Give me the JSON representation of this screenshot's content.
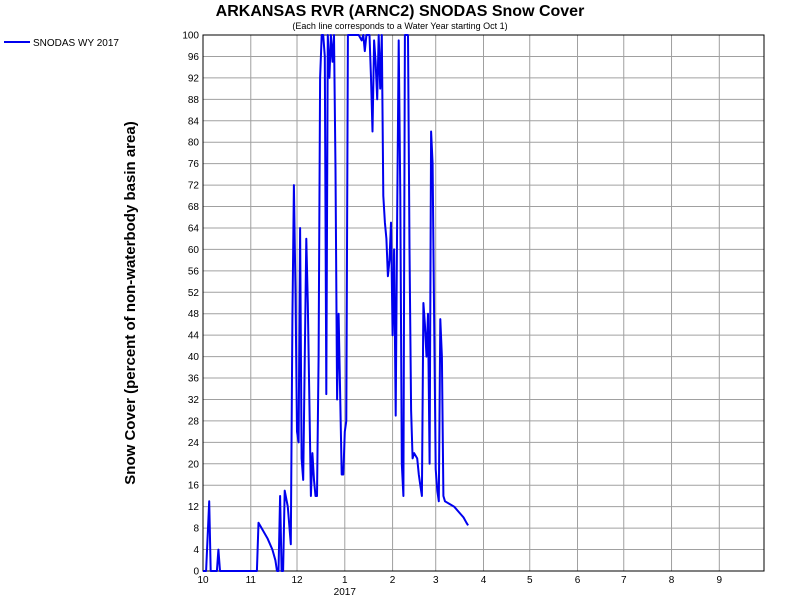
{
  "chart_data": {
    "type": "line",
    "title": "ARKANSAS RVR (ARNC2) SNODAS Snow Cover",
    "subtitle": "(Each line corresponds to a Water Year starting Oct 1)",
    "ylabel": "Snow Cover (percent of non-waterbody basin area)",
    "xlabel": "",
    "ylim": [
      0,
      100
    ],
    "y_ticks": [
      0,
      4,
      8,
      12,
      16,
      20,
      24,
      28,
      32,
      36,
      40,
      44,
      48,
      52,
      56,
      60,
      64,
      68,
      72,
      76,
      80,
      84,
      88,
      92,
      96,
      100
    ],
    "x_ticks": [
      {
        "label": "10",
        "date": "2016-10-01"
      },
      {
        "label": "11",
        "date": "2016-11-01"
      },
      {
        "label": "12",
        "date": "2016-12-01"
      },
      {
        "label": "1",
        "date": "2017-01-01"
      },
      {
        "label": "2",
        "date": "2017-02-01"
      },
      {
        "label": "3",
        "date": "2017-03-01"
      },
      {
        "label": "4",
        "date": "2017-04-01"
      },
      {
        "label": "5",
        "date": "2017-05-01"
      },
      {
        "label": "6",
        "date": "2017-06-01"
      },
      {
        "label": "7",
        "date": "2017-07-01"
      },
      {
        "label": "8",
        "date": "2017-08-01"
      },
      {
        "label": "9",
        "date": "2017-09-01"
      }
    ],
    "year_label": {
      "text": "2017",
      "date": "2017-01-01"
    },
    "xlim": [
      "2016-10-01",
      "2017-09-30"
    ],
    "grid": true,
    "legend": "top-left",
    "series": [
      {
        "name": "SNODAS WY 2017",
        "color": "#0000ee",
        "points": [
          [
            "2016-10-01",
            0
          ],
          [
            "2016-10-03",
            0
          ],
          [
            "2016-10-05",
            13
          ],
          [
            "2016-10-06",
            0
          ],
          [
            "2016-10-10",
            0
          ],
          [
            "2016-10-11",
            4
          ],
          [
            "2016-10-12",
            0
          ],
          [
            "2016-10-20",
            0
          ],
          [
            "2016-11-01",
            0
          ],
          [
            "2016-11-05",
            0
          ],
          [
            "2016-11-06",
            9
          ],
          [
            "2016-11-08",
            8
          ],
          [
            "2016-11-12",
            6
          ],
          [
            "2016-11-15",
            4
          ],
          [
            "2016-11-17",
            2
          ],
          [
            "2016-11-18",
            0
          ],
          [
            "2016-11-19",
            0
          ],
          [
            "2016-11-20",
            14
          ],
          [
            "2016-11-21",
            0
          ],
          [
            "2016-11-22",
            0
          ],
          [
            "2016-11-23",
            15
          ],
          [
            "2016-11-25",
            12
          ],
          [
            "2016-11-27",
            5
          ],
          [
            "2016-11-28",
            47
          ],
          [
            "2016-11-29",
            72
          ],
          [
            "2016-11-30",
            52
          ],
          [
            "2016-12-01",
            26
          ],
          [
            "2016-12-02",
            24
          ],
          [
            "2016-12-03",
            64
          ],
          [
            "2016-12-04",
            21
          ],
          [
            "2016-12-05",
            17
          ],
          [
            "2016-12-07",
            62
          ],
          [
            "2016-12-08",
            50
          ],
          [
            "2016-12-10",
            14
          ],
          [
            "2016-12-11",
            22
          ],
          [
            "2016-12-12",
            17
          ],
          [
            "2016-12-13",
            14
          ],
          [
            "2016-12-14",
            14
          ],
          [
            "2016-12-15",
            40
          ],
          [
            "2016-12-16",
            92
          ],
          [
            "2016-12-17",
            100
          ],
          [
            "2016-12-18",
            100
          ],
          [
            "2016-12-19",
            96
          ],
          [
            "2016-12-20",
            33
          ],
          [
            "2016-12-21",
            100
          ],
          [
            "2016-12-22",
            92
          ],
          [
            "2016-12-23",
            100
          ],
          [
            "2016-12-24",
            95
          ],
          [
            "2016-12-25",
            100
          ],
          [
            "2016-12-26",
            75
          ],
          [
            "2016-12-27",
            32
          ],
          [
            "2016-12-28",
            48
          ],
          [
            "2016-12-30",
            18
          ],
          [
            "2016-12-31",
            18
          ],
          [
            "2017-01-01",
            26
          ],
          [
            "2017-01-02",
            28
          ],
          [
            "2017-01-03",
            100
          ],
          [
            "2017-01-06",
            100
          ],
          [
            "2017-01-10",
            100
          ],
          [
            "2017-01-12",
            99
          ],
          [
            "2017-01-13",
            100
          ],
          [
            "2017-01-14",
            97
          ],
          [
            "2017-01-15",
            100
          ],
          [
            "2017-01-17",
            100
          ],
          [
            "2017-01-18",
            92
          ],
          [
            "2017-01-19",
            82
          ],
          [
            "2017-01-20",
            99
          ],
          [
            "2017-01-21",
            95
          ],
          [
            "2017-01-22",
            88
          ],
          [
            "2017-01-23",
            100
          ],
          [
            "2017-01-24",
            90
          ],
          [
            "2017-01-25",
            100
          ],
          [
            "2017-01-26",
            70
          ],
          [
            "2017-01-27",
            65
          ],
          [
            "2017-01-28",
            62
          ],
          [
            "2017-01-29",
            55
          ],
          [
            "2017-01-30",
            58
          ],
          [
            "2017-01-31",
            65
          ],
          [
            "2017-02-01",
            44
          ],
          [
            "2017-02-02",
            60
          ],
          [
            "2017-02-03",
            29
          ],
          [
            "2017-02-04",
            67
          ],
          [
            "2017-02-05",
            99
          ],
          [
            "2017-02-06",
            70
          ],
          [
            "2017-02-07",
            20
          ],
          [
            "2017-02-08",
            14
          ],
          [
            "2017-02-09",
            100
          ],
          [
            "2017-02-10",
            100
          ],
          [
            "2017-02-11",
            100
          ],
          [
            "2017-02-12",
            60
          ],
          [
            "2017-02-13",
            30
          ],
          [
            "2017-02-14",
            21
          ],
          [
            "2017-02-15",
            22
          ],
          [
            "2017-02-17",
            21
          ],
          [
            "2017-02-18",
            18
          ],
          [
            "2017-02-19",
            16
          ],
          [
            "2017-02-20",
            14
          ],
          [
            "2017-02-21",
            50
          ],
          [
            "2017-02-22",
            46
          ],
          [
            "2017-02-23",
            40
          ],
          [
            "2017-02-24",
            48
          ],
          [
            "2017-02-25",
            20
          ],
          [
            "2017-02-26",
            82
          ],
          [
            "2017-02-27",
            76
          ],
          [
            "2017-02-28",
            46
          ],
          [
            "2017-03-01",
            19
          ],
          [
            "2017-03-02",
            15
          ],
          [
            "2017-03-03",
            13
          ],
          [
            "2017-03-04",
            47
          ],
          [
            "2017-03-05",
            40
          ],
          [
            "2017-03-06",
            14
          ],
          [
            "2017-03-07",
            13
          ],
          [
            "2017-03-10",
            12.5
          ],
          [
            "2017-03-13",
            12
          ],
          [
            "2017-03-16",
            11
          ],
          [
            "2017-03-19",
            10
          ],
          [
            "2017-03-21",
            9
          ],
          [
            "2017-03-22",
            8.5
          ]
        ]
      }
    ]
  }
}
